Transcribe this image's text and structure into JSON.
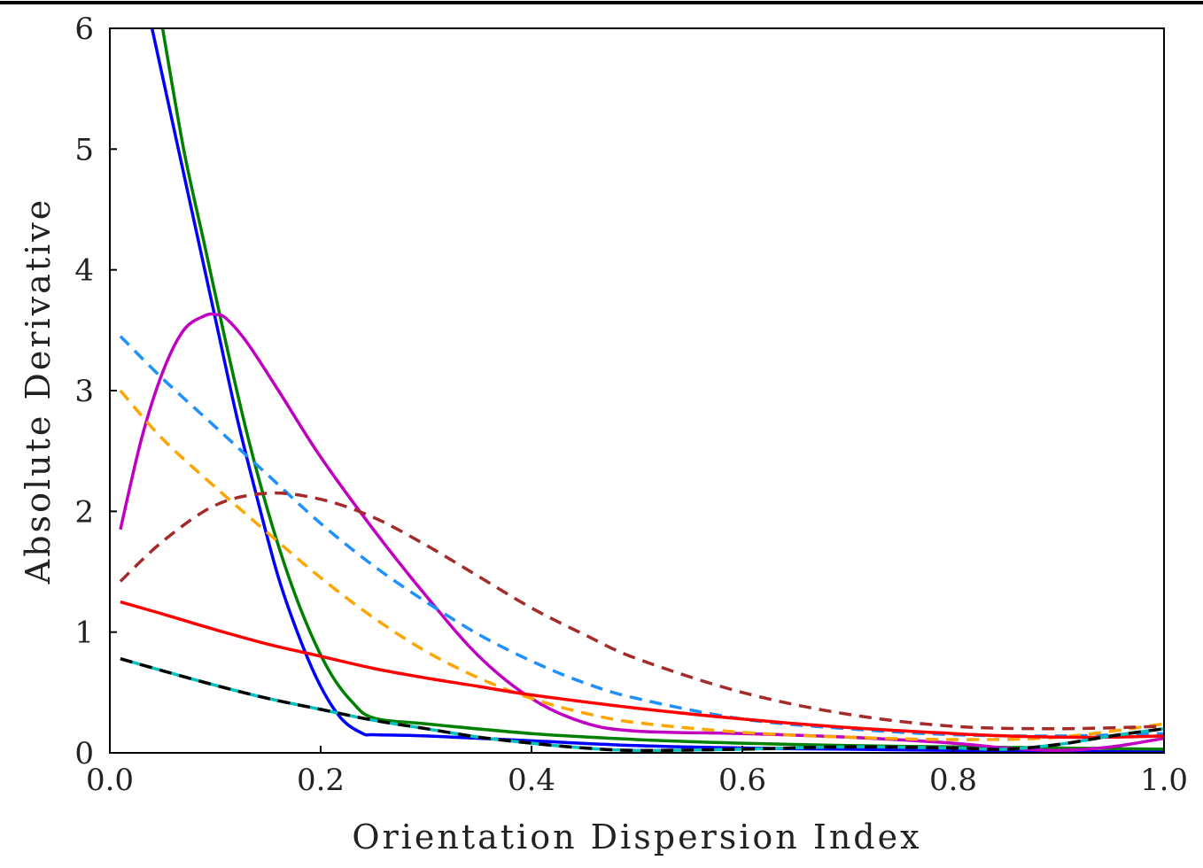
{
  "chart_data": {
    "type": "line",
    "title": "",
    "xlabel": "Orientation Dispersion Index",
    "ylabel": "Absolute Derivative",
    "xlim": [
      0.0,
      1.0
    ],
    "ylim": [
      0,
      6
    ],
    "xticks": [
      "0.0",
      "0.2",
      "0.4",
      "0.6",
      "0.8",
      "1.0"
    ],
    "yticks": [
      "0",
      "1",
      "2",
      "3",
      "4",
      "5",
      "6"
    ],
    "grid": false,
    "legend": "none",
    "series": [
      {
        "color": "#0000ff",
        "dash": "solid",
        "x": [
          0.04,
          0.06,
          0.08,
          0.1,
          0.12,
          0.14,
          0.16,
          0.18,
          0.2,
          0.22,
          0.24,
          0.25,
          0.3,
          0.4,
          0.5,
          0.6,
          0.7,
          0.8,
          0.9,
          1.0
        ],
        "y": [
          6.0,
          5.2,
          4.4,
          3.6,
          2.8,
          2.1,
          1.45,
          0.95,
          0.55,
          0.28,
          0.16,
          0.15,
          0.14,
          0.1,
          0.06,
          0.04,
          0.03,
          0.02,
          0.01,
          0.01
        ]
      },
      {
        "color": "#008000",
        "dash": "solid",
        "x": [
          0.05,
          0.07,
          0.09,
          0.11,
          0.13,
          0.15,
          0.17,
          0.19,
          0.21,
          0.23,
          0.25,
          0.3,
          0.4,
          0.5,
          0.6,
          0.7,
          0.8,
          0.9,
          1.0
        ],
        "y": [
          6.0,
          5.0,
          4.2,
          3.4,
          2.65,
          2.0,
          1.45,
          1.0,
          0.65,
          0.42,
          0.29,
          0.24,
          0.16,
          0.11,
          0.08,
          0.06,
          0.05,
          0.04,
          0.03
        ]
      },
      {
        "color": "#c000c0",
        "dash": "solid",
        "x": [
          0.01,
          0.03,
          0.05,
          0.07,
          0.09,
          0.1,
          0.11,
          0.13,
          0.16,
          0.2,
          0.25,
          0.3,
          0.35,
          0.4,
          0.45,
          0.5,
          0.6,
          0.7,
          0.8,
          0.85,
          0.9,
          0.95,
          1.0
        ],
        "y": [
          1.85,
          2.6,
          3.15,
          3.5,
          3.62,
          3.63,
          3.6,
          3.4,
          3.0,
          2.45,
          1.85,
          1.3,
          0.8,
          0.45,
          0.25,
          0.18,
          0.16,
          0.13,
          0.08,
          0.04,
          0.02,
          0.05,
          0.12
        ]
      },
      {
        "color": "#1e90ff",
        "dash": "dashed",
        "x": [
          0.01,
          0.05,
          0.1,
          0.15,
          0.2,
          0.25,
          0.3,
          0.35,
          0.4,
          0.45,
          0.5,
          0.6,
          0.7,
          0.8,
          0.9,
          1.0
        ],
        "y": [
          3.45,
          3.1,
          2.7,
          2.3,
          1.9,
          1.55,
          1.25,
          0.98,
          0.76,
          0.58,
          0.45,
          0.28,
          0.2,
          0.15,
          0.14,
          0.16
        ]
      },
      {
        "color": "#ffa500",
        "dash": "dashed",
        "x": [
          0.01,
          0.05,
          0.1,
          0.15,
          0.2,
          0.25,
          0.3,
          0.35,
          0.4,
          0.45,
          0.5,
          0.6,
          0.7,
          0.8,
          0.9,
          1.0
        ],
        "y": [
          3.0,
          2.6,
          2.2,
          1.82,
          1.45,
          1.12,
          0.84,
          0.62,
          0.45,
          0.33,
          0.25,
          0.17,
          0.13,
          0.11,
          0.13,
          0.24
        ]
      },
      {
        "color": "#a52a2a",
        "dash": "dashed",
        "x": [
          0.01,
          0.05,
          0.1,
          0.15,
          0.2,
          0.25,
          0.3,
          0.35,
          0.4,
          0.45,
          0.5,
          0.6,
          0.7,
          0.8,
          0.9,
          1.0
        ],
        "y": [
          1.42,
          1.75,
          2.05,
          2.15,
          2.1,
          1.95,
          1.72,
          1.46,
          1.2,
          0.98,
          0.78,
          0.5,
          0.32,
          0.22,
          0.2,
          0.22
        ]
      },
      {
        "color": "#ff0000",
        "dash": "solid",
        "x": [
          0.01,
          0.05,
          0.1,
          0.15,
          0.2,
          0.25,
          0.3,
          0.35,
          0.4,
          0.5,
          0.6,
          0.7,
          0.8,
          0.85,
          0.9,
          0.95,
          1.0
        ],
        "y": [
          1.25,
          1.15,
          1.02,
          0.9,
          0.8,
          0.7,
          0.62,
          0.55,
          0.48,
          0.37,
          0.28,
          0.21,
          0.16,
          0.14,
          0.13,
          0.13,
          0.14
        ]
      },
      {
        "color": "#00c0c0",
        "dash": "solid",
        "x": [
          0.01,
          0.05,
          0.1,
          0.15,
          0.2,
          0.25,
          0.3,
          0.35,
          0.4,
          0.45,
          0.5,
          0.6,
          0.7,
          0.8,
          0.85,
          0.9,
          0.95,
          1.0
        ],
        "y": [
          0.78,
          0.68,
          0.56,
          0.45,
          0.36,
          0.27,
          0.2,
          0.13,
          0.08,
          0.04,
          0.02,
          0.03,
          0.05,
          0.04,
          0.03,
          0.07,
          0.14,
          0.2
        ]
      },
      {
        "color": "#000000",
        "dash": "dashed",
        "x": [
          0.01,
          0.05,
          0.1,
          0.15,
          0.2,
          0.25,
          0.3,
          0.35,
          0.4,
          0.45,
          0.5,
          0.6,
          0.7,
          0.8,
          0.85,
          0.9,
          0.95,
          1.0
        ],
        "y": [
          0.78,
          0.68,
          0.56,
          0.45,
          0.36,
          0.27,
          0.2,
          0.13,
          0.08,
          0.04,
          0.02,
          0.03,
          0.05,
          0.04,
          0.03,
          0.07,
          0.14,
          0.2
        ]
      }
    ]
  }
}
